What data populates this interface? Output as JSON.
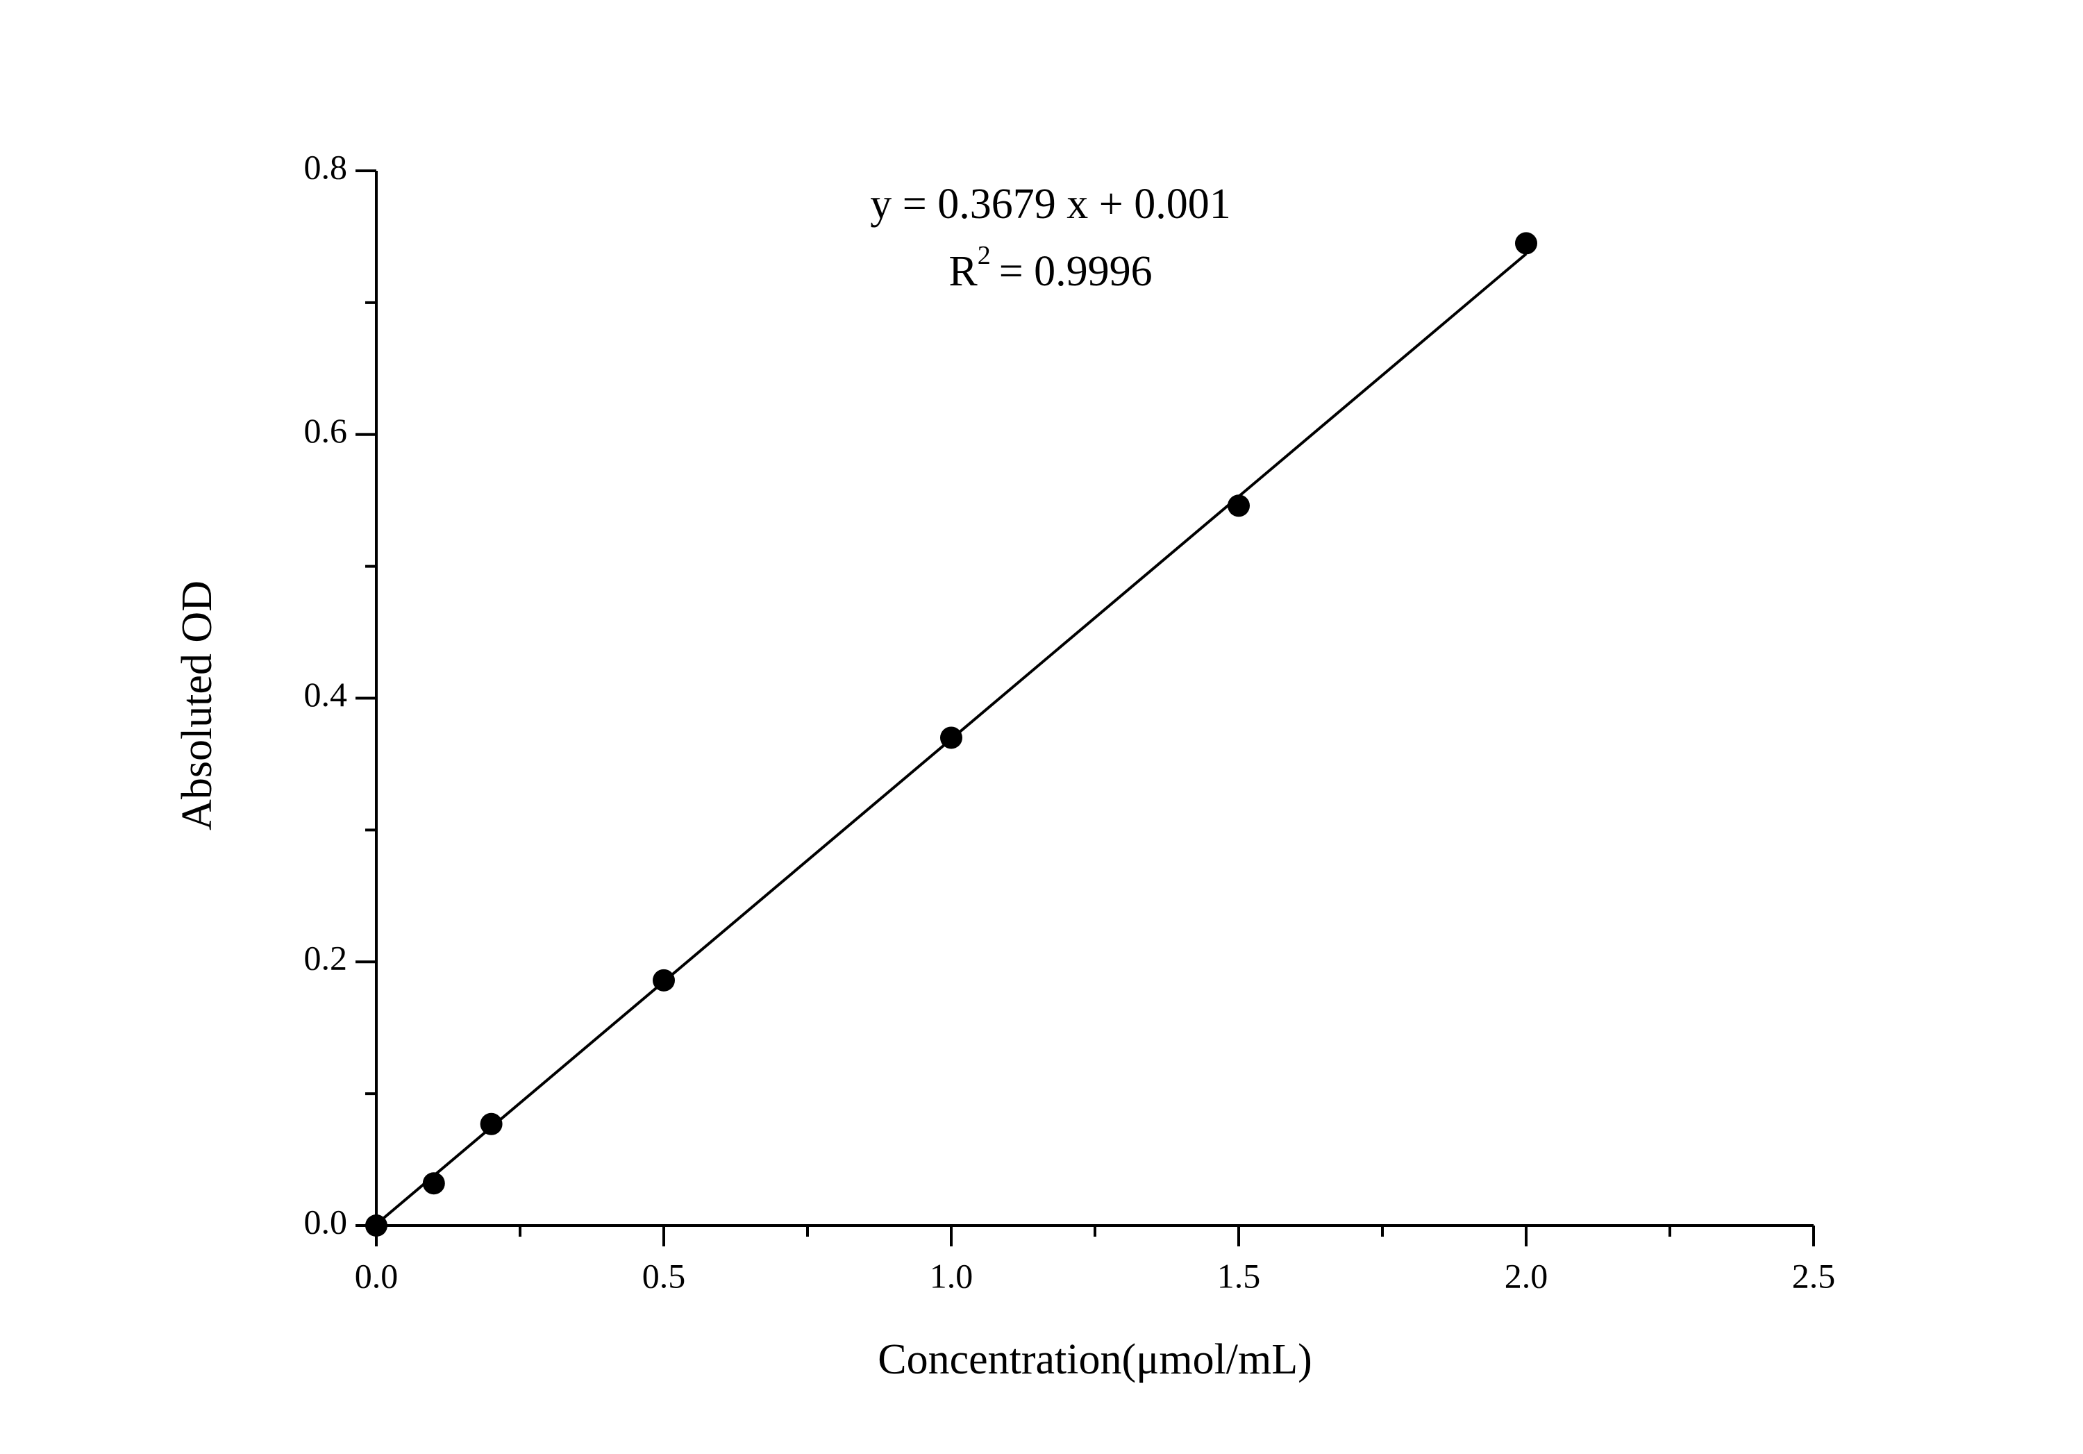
{
  "chart_data": {
    "type": "scatter",
    "x_label": "Concentration(μmol/mL)",
    "y_label": "Absoluted OD",
    "annotations": {
      "equation": "y = 0.3679 x + 0.001",
      "r2_base": "R",
      "r2_sup": "2",
      "r2_value": "= 0.9996"
    },
    "x": [
      0,
      0.1,
      0.2,
      0.5,
      1.0,
      1.5,
      2.0
    ],
    "series": [
      {
        "name": "Absoluted OD",
        "color": "#000000",
        "values": [
          0.0,
          0.032,
          0.077,
          0.186,
          0.37,
          0.546,
          0.745
        ]
      }
    ],
    "fit_line": {
      "x": [
        0,
        2.0
      ],
      "values": [
        0.001,
        0.737
      ],
      "color": "#000000"
    },
    "xlim": [
      0,
      2.5
    ],
    "ylim": [
      0,
      0.8
    ],
    "xticks": [
      {
        "value": 0,
        "label": "0.0"
      },
      0.5,
      {
        "value": 1,
        "label": "1.0"
      },
      1.5,
      {
        "value": 2,
        "label": "2.0"
      },
      2.5
    ],
    "yticks": [
      {
        "value": 0,
        "label": "0.0"
      },
      0.2,
      0.4,
      0.6,
      0.8
    ],
    "xminorticks": [
      0.25,
      0.75,
      1.25,
      1.75,
      2.25
    ],
    "yminorticks": [
      0.1,
      0.3,
      0.5,
      0.7
    ],
    "grid": false
  }
}
